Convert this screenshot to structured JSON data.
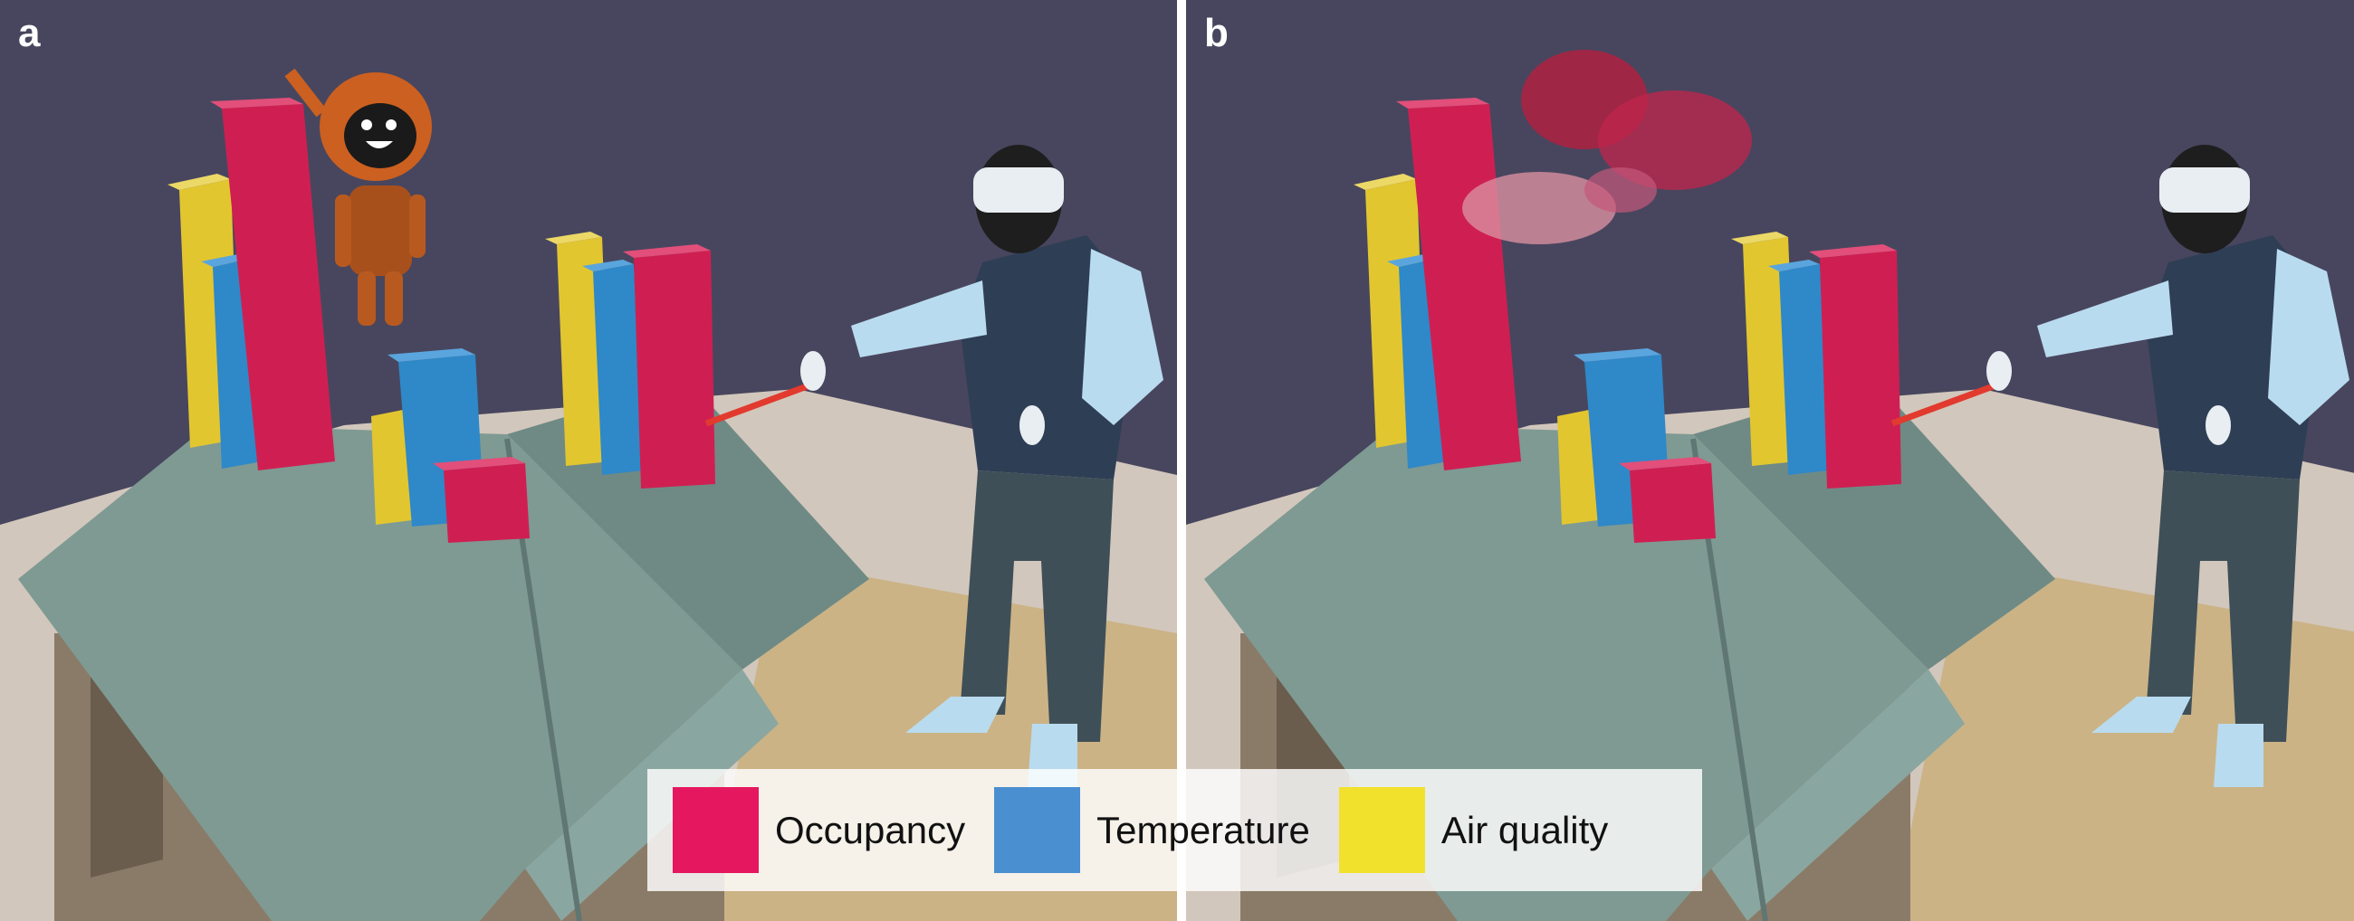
{
  "panels": [
    {
      "id": "a",
      "label": "a"
    },
    {
      "id": "b",
      "label": "b"
    }
  ],
  "legend": {
    "items": [
      {
        "label": "Occupancy",
        "color": "#e5175f"
      },
      {
        "label": "Temperature",
        "color": "#4a8fd0"
      },
      {
        "label": "Air quality",
        "color": "#f2e12c"
      }
    ]
  },
  "colors": {
    "sky": "#48465e",
    "ground": "#d2c7bc",
    "roof": "#7e9a93",
    "wall": "#8a7b68",
    "occupancy": "#cf1f52",
    "temperature": "#2f88c8",
    "air_quality": "#e2c630",
    "pointer": "#e23a2e",
    "user_shirt": "#2e3e55",
    "user_skin": "#b9dbef",
    "user_pants": "#3f4f57",
    "robot": "#cc6020"
  }
}
